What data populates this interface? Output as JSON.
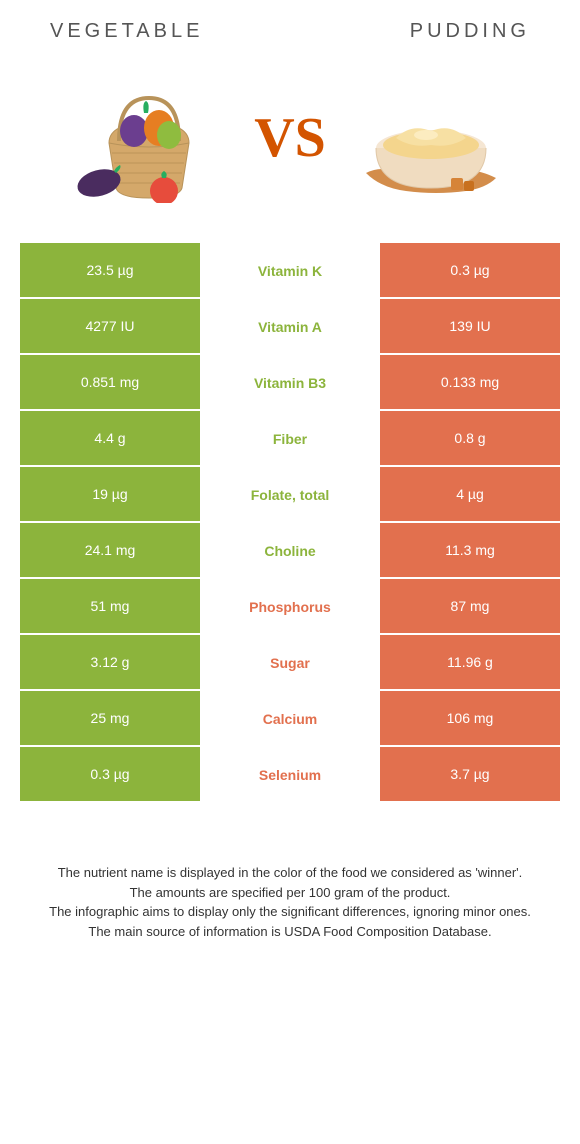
{
  "header": {
    "left_title": "VEGETABLE",
    "right_title": "PUDDING",
    "vs_label": "VS"
  },
  "colors": {
    "left_bg": "#8cb43c",
    "right_bg": "#e2704e",
    "left_text": "#8cb43c",
    "right_text": "#e2704e",
    "row_border": "#ffffff"
  },
  "table": {
    "rows": [
      {
        "left": "23.5 µg",
        "center": "Vitamin K",
        "right": "0.3 µg",
        "winner": "left"
      },
      {
        "left": "4277 IU",
        "center": "Vitamin A",
        "right": "139 IU",
        "winner": "left"
      },
      {
        "left": "0.851 mg",
        "center": "Vitamin B3",
        "right": "0.133 mg",
        "winner": "left"
      },
      {
        "left": "4.4 g",
        "center": "Fiber",
        "right": "0.8 g",
        "winner": "left"
      },
      {
        "left": "19 µg",
        "center": "Folate, total",
        "right": "4 µg",
        "winner": "left"
      },
      {
        "left": "24.1 mg",
        "center": "Choline",
        "right": "11.3 mg",
        "winner": "left"
      },
      {
        "left": "51 mg",
        "center": "Phosphorus",
        "right": "87 mg",
        "winner": "right"
      },
      {
        "left": "3.12 g",
        "center": "Sugar",
        "right": "11.96 g",
        "winner": "right"
      },
      {
        "left": "25 mg",
        "center": "Calcium",
        "right": "106 mg",
        "winner": "right"
      },
      {
        "left": "0.3 µg",
        "center": "Selenium",
        "right": "3.7 µg",
        "winner": "right"
      }
    ]
  },
  "footer": {
    "line1": "The nutrient name is displayed in the color of the food we considered as 'winner'.",
    "line2": "The amounts are specified per 100 gram of the product.",
    "line3": "The infographic aims to display only the significant differences, ignoring minor ones.",
    "line4": "The main source of information is USDA Food Composition Database."
  }
}
